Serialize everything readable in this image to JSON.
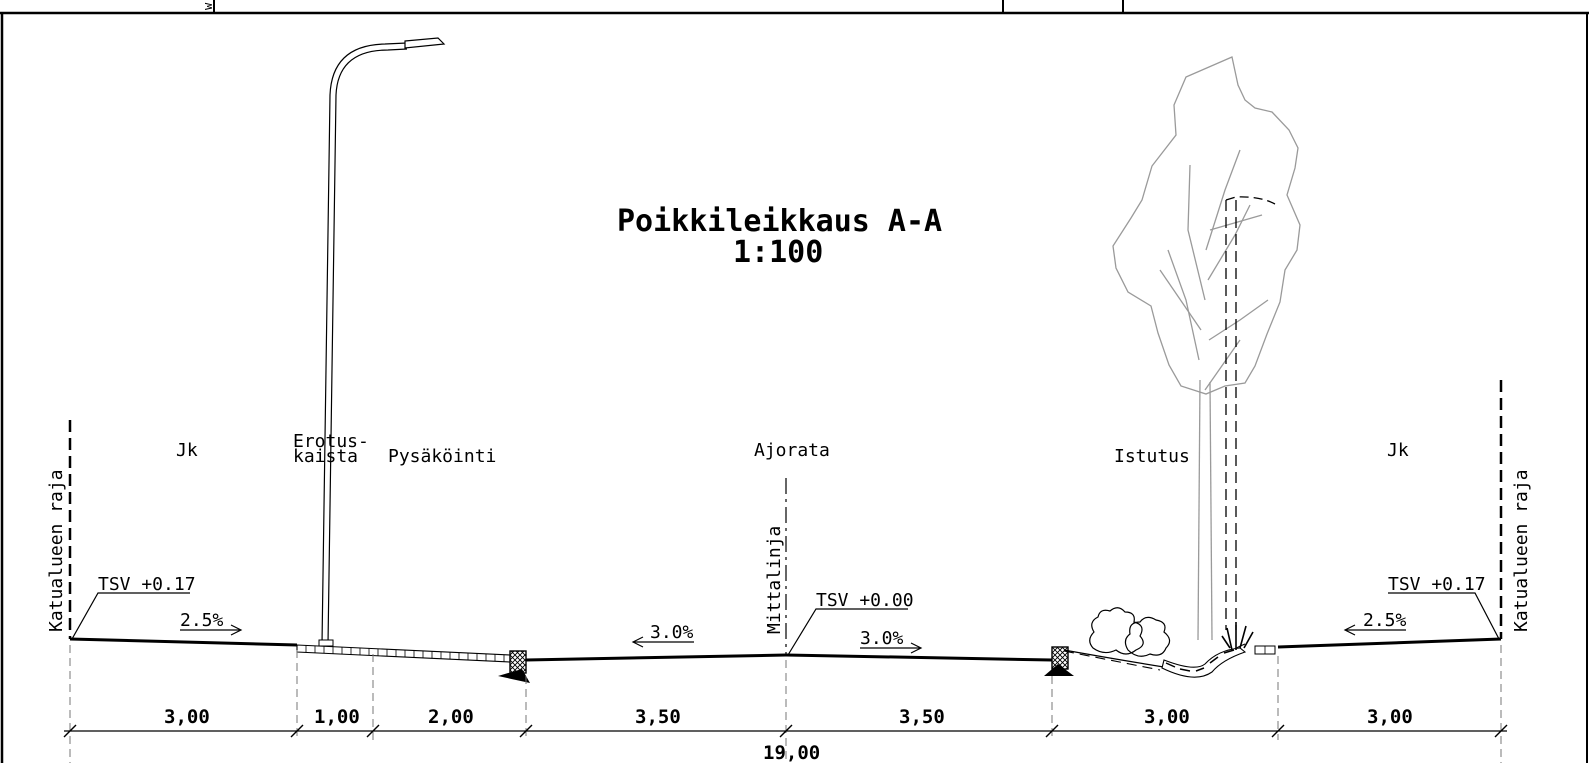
{
  "title": "Poikkileikkaus A-A",
  "scale": "1:100",
  "zones": {
    "jk_left": "Jk",
    "erotuskaista_line1": "Erotus-",
    "erotuskaista_line2": "kaista",
    "pysakointi": "Pysäköinti",
    "ajorata": "Ajorata",
    "istutus": "Istutus",
    "jk_right": "Jk"
  },
  "boundary_left": "Katualueen raja",
  "boundary_right": "Katualueen raja",
  "centerline": "Mittalinja",
  "levels": {
    "left": "TSV +0.17",
    "center": "TSV +0.00",
    "right": "TSV +0.17"
  },
  "slopes": {
    "left": "2.5%",
    "road_left": "3.0%",
    "road_right": "3.0%",
    "right": "2.5%"
  },
  "dimensions": [
    "3,00",
    "1,00",
    "2,00",
    "3,50",
    "3,50",
    "3,00",
    "3,00"
  ],
  "total_width": "19,00"
}
